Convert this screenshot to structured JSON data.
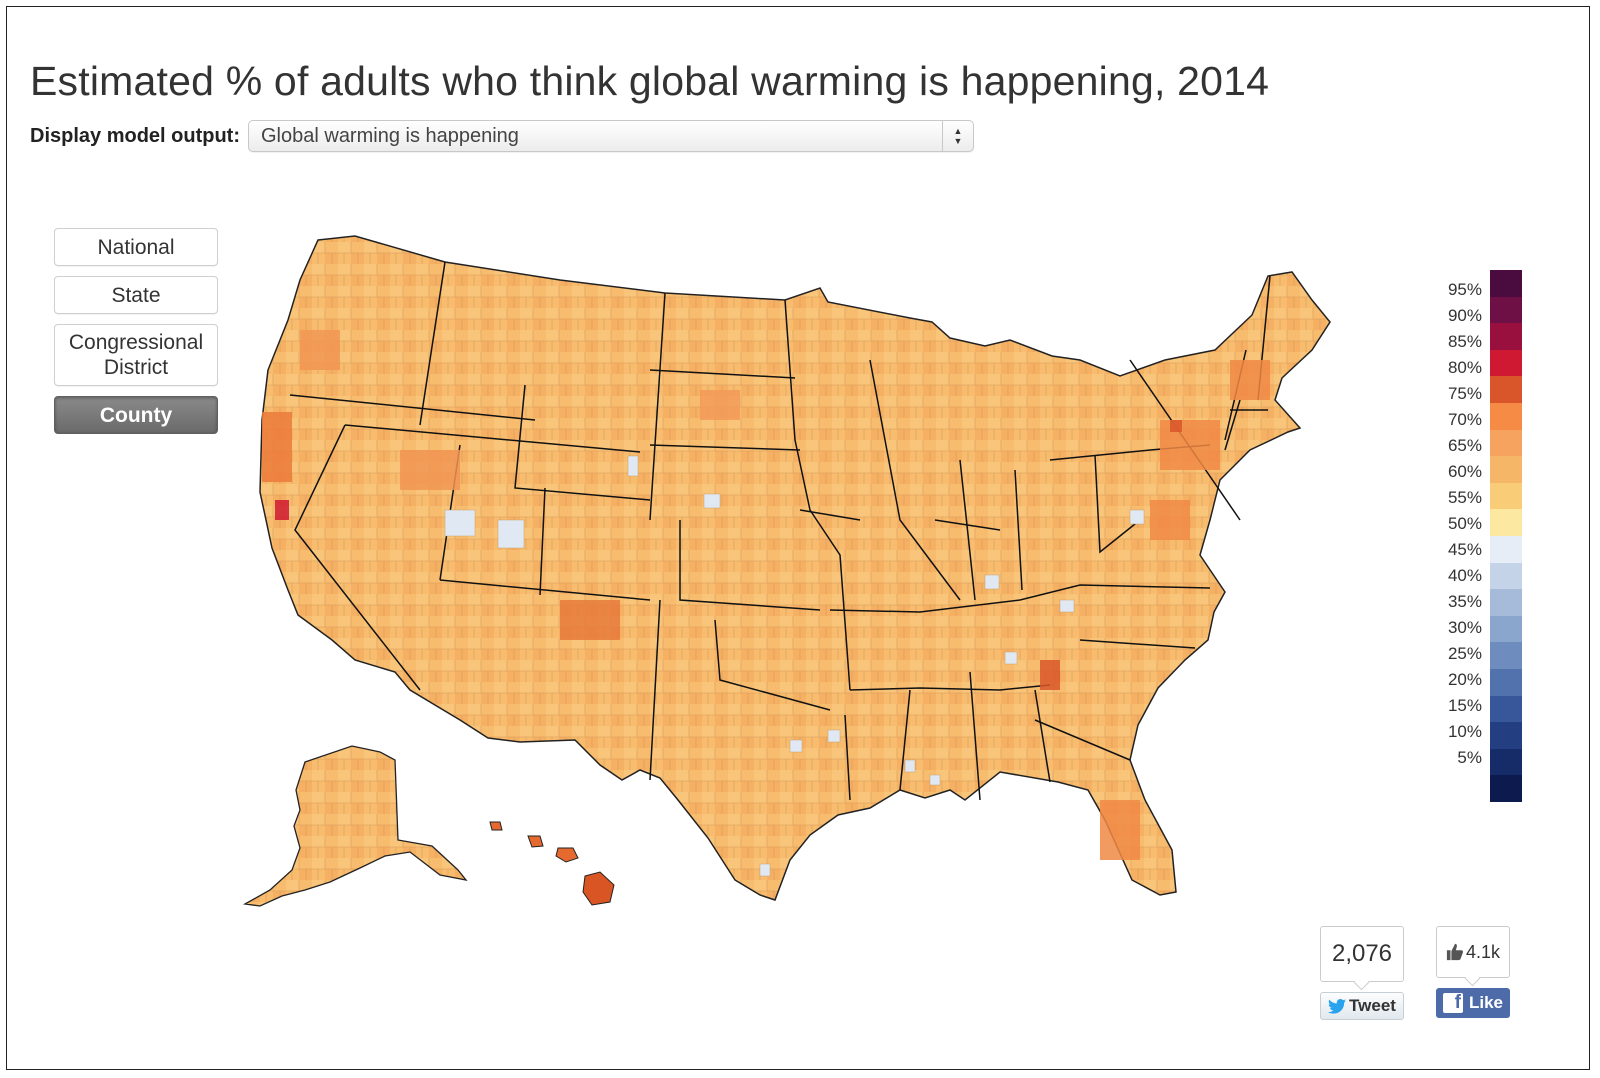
{
  "title": "Estimated % of adults who think global warming is happening, 2014",
  "model_output": {
    "label": "Display model output:",
    "selected": "Global warming is happening"
  },
  "geography_buttons": [
    {
      "label": "National",
      "active": false
    },
    {
      "label": "State",
      "active": false
    },
    {
      "label": "Congressional District",
      "active": false
    },
    {
      "label": "County",
      "active": true
    }
  ],
  "legend": {
    "ticks": [
      "95%",
      "90%",
      "85%",
      "80%",
      "75%",
      "70%",
      "65%",
      "60%",
      "55%",
      "50%",
      "45%",
      "40%",
      "35%",
      "30%",
      "25%",
      "20%",
      "15%",
      "10%",
      "5%"
    ],
    "colors": [
      "#4a0b3f",
      "#6e0f45",
      "#990f3e",
      "#cf1932",
      "#d9562a",
      "#f58b45",
      "#f5a35f",
      "#f5b767",
      "#f9cc78",
      "#fce8a0",
      "#e6edf6",
      "#c4d3e8",
      "#a5bbd9",
      "#8ba6cc",
      "#6e8dbe",
      "#5272ad",
      "#38579a",
      "#233f82",
      "#162c69",
      "#0c1a4d"
    ]
  },
  "map_colors": {
    "state_border": "#111111",
    "county_border": "#d99a5a",
    "state_fill": "#f7bc6e"
  },
  "social": {
    "tweet_count": "2,076",
    "tweet_label": "Tweet",
    "like_count": "4.1k",
    "like_label": "Like"
  }
}
